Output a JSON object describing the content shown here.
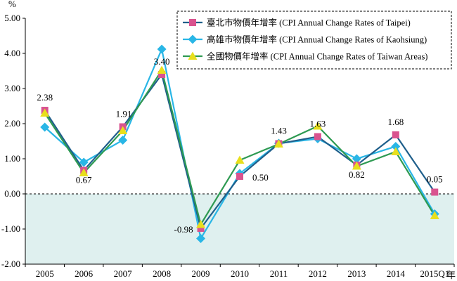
{
  "chart_data": {
    "type": "line",
    "unit": "%",
    "x_unit": "年",
    "categories": [
      "2005",
      "2006",
      "2007",
      "2008",
      "2009",
      "2010",
      "2011",
      "2012",
      "2013",
      "2014",
      "2015Q1"
    ],
    "y_ticks": [
      "5.00",
      "4.00",
      "3.00",
      "2.00",
      "1.00",
      "0.00",
      "-1.00",
      "-2.00"
    ],
    "ylim": [
      -2,
      5
    ],
    "series": [
      {
        "name": "臺北市物價年增率 (CPI Annual Change Rates of Taipei)",
        "color": "#1f5f8b",
        "marker_color": "#d9538f",
        "marker": "square",
        "values": [
          2.38,
          0.67,
          1.91,
          3.4,
          -0.98,
          0.5,
          1.43,
          1.63,
          0.82,
          1.68,
          0.05
        ]
      },
      {
        "name": "高雄市物價年增率 (CPI Annual Change Rates of Kaohsiung)",
        "color": "#29b6e6",
        "marker_color": "#29b6e6",
        "marker": "diamond",
        "values": [
          1.9,
          0.9,
          1.53,
          4.12,
          -1.27,
          0.58,
          1.44,
          1.57,
          1.0,
          1.35,
          -0.57
        ]
      },
      {
        "name": "全國物價年增率 (CPI Annual Change Rates of Taiwan Areas)",
        "color": "#2e9a52",
        "marker_color": "#e8df1c",
        "marker": "triangle",
        "values": [
          2.3,
          0.6,
          1.8,
          3.52,
          -0.87,
          0.96,
          1.42,
          1.93,
          0.79,
          1.2,
          -0.62
        ]
      }
    ],
    "data_labels": [
      {
        "category": "2005",
        "value": 2.38,
        "text": "2.38"
      },
      {
        "category": "2006",
        "value": 0.67,
        "text": "0.67"
      },
      {
        "category": "2007",
        "value": 1.91,
        "text": "1.91"
      },
      {
        "category": "2008",
        "value": 3.4,
        "text": "3.40"
      },
      {
        "category": "2009",
        "value": -0.98,
        "text": "-0.98"
      },
      {
        "category": "2010",
        "value": 0.5,
        "text": "0.50"
      },
      {
        "category": "2011",
        "value": 1.43,
        "text": "1.43"
      },
      {
        "category": "2012",
        "value": 1.63,
        "text": "1.63"
      },
      {
        "category": "2013",
        "value": 0.82,
        "text": "0.82"
      },
      {
        "category": "2014",
        "value": 1.68,
        "text": "1.68"
      },
      {
        "category": "2015Q1",
        "value": 0.05,
        "text": "0.05"
      }
    ],
    "negative_region_color": "#dff0ef",
    "legend_position": "top-right",
    "grid": false
  }
}
